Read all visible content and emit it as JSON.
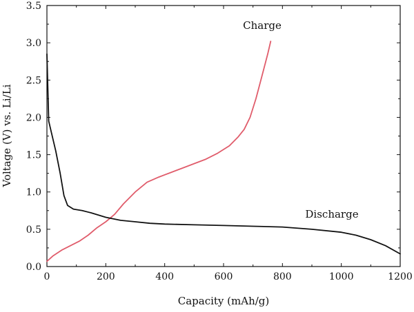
{
  "chart_data": {
    "type": "line",
    "title": "",
    "xlabel": "Capacity (mAh/g)",
    "ylabel": "Voltage (V) vs. Li/Li",
    "xlim": [
      0,
      1200
    ],
    "ylim": [
      0,
      3.5
    ],
    "xticks": [
      "0",
      "200",
      "400",
      "600",
      "800",
      "1000",
      "1200"
    ],
    "yticks": [
      "0.0",
      "0.5",
      "1.0",
      "1.5",
      "2.0",
      "2.5",
      "3.0",
      "3.5"
    ],
    "grid": false,
    "legend": "none",
    "annotations": [
      {
        "text": "Charge",
        "series": "charge"
      },
      {
        "text": "Discharge",
        "series": "discharge"
      }
    ],
    "series": [
      {
        "id": "charge",
        "color": "#e05c6b",
        "points": [
          [
            0,
            0.07
          ],
          [
            20,
            0.14
          ],
          [
            50,
            0.22
          ],
          [
            80,
            0.28
          ],
          [
            110,
            0.34
          ],
          [
            140,
            0.42
          ],
          [
            170,
            0.52
          ],
          [
            200,
            0.6
          ],
          [
            230,
            0.7
          ],
          [
            260,
            0.84
          ],
          [
            300,
            1.0
          ],
          [
            340,
            1.13
          ],
          [
            380,
            1.2
          ],
          [
            420,
            1.26
          ],
          [
            460,
            1.32
          ],
          [
            500,
            1.38
          ],
          [
            540,
            1.44
          ],
          [
            580,
            1.52
          ],
          [
            620,
            1.62
          ],
          [
            650,
            1.74
          ],
          [
            670,
            1.84
          ],
          [
            690,
            2.0
          ],
          [
            710,
            2.25
          ],
          [
            730,
            2.55
          ],
          [
            750,
            2.85
          ],
          [
            760,
            3.02
          ]
        ]
      },
      {
        "id": "discharge",
        "color": "#111111",
        "points": [
          [
            0,
            2.85
          ],
          [
            3,
            2.4
          ],
          [
            6,
            1.95
          ],
          [
            15,
            1.8
          ],
          [
            30,
            1.55
          ],
          [
            45,
            1.25
          ],
          [
            58,
            0.95
          ],
          [
            70,
            0.82
          ],
          [
            90,
            0.77
          ],
          [
            120,
            0.75
          ],
          [
            150,
            0.72
          ],
          [
            200,
            0.66
          ],
          [
            250,
            0.62
          ],
          [
            300,
            0.6
          ],
          [
            350,
            0.58
          ],
          [
            400,
            0.57
          ],
          [
            500,
            0.56
          ],
          [
            600,
            0.55
          ],
          [
            700,
            0.54
          ],
          [
            800,
            0.53
          ],
          [
            900,
            0.5
          ],
          [
            1000,
            0.46
          ],
          [
            1050,
            0.42
          ],
          [
            1100,
            0.36
          ],
          [
            1150,
            0.28
          ],
          [
            1200,
            0.17
          ]
        ]
      }
    ]
  }
}
